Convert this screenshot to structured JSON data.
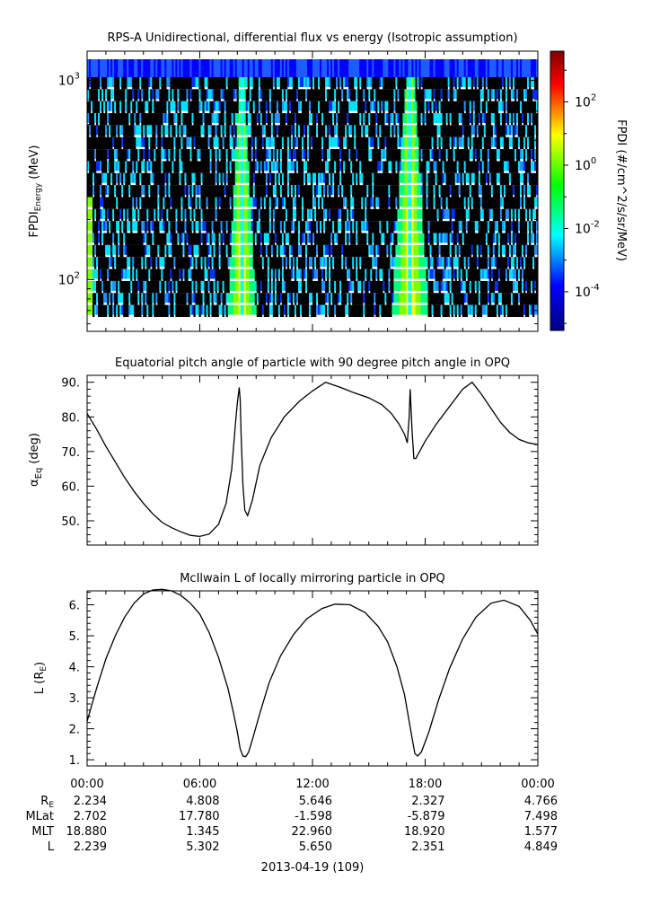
{
  "chart_data": [
    {
      "type": "heatmap",
      "title": "RPS-A Unidirectional, differential flux vs energy (Isotropic assumption)",
      "ylabel_main": "FPDI",
      "ylabel_sub": "Energy",
      "ylabel_unit": "(MeV)",
      "yscale": "log",
      "ylim": [
        55,
        1400
      ],
      "yticks": [
        {
          "value": 100,
          "base": "10",
          "exp": "2"
        },
        {
          "value": 1000,
          "base": "10",
          "exp": "3"
        }
      ],
      "xlim": [
        0,
        24
      ],
      "green_bands_hours": [
        {
          "center": 8.25,
          "base_halfwidth": 0.75,
          "top_halfwidth": 0.15
        },
        {
          "center": 17.2,
          "base_halfwidth": 0.95,
          "top_halfwidth": 0.25
        }
      ],
      "colorbar": {
        "label": "FPDI (#/cm^2/s/sr/MeV)",
        "scale": "log",
        "range": [
          6e-06,
          4000
        ],
        "ticks": [
          {
            "value": 0.0001,
            "base": "10",
            "exp": "-4"
          },
          {
            "value": 0.01,
            "base": "10",
            "exp": "-2"
          },
          {
            "value": 1,
            "base": "10",
            "exp": "0"
          },
          {
            "value": 100,
            "base": "10",
            "exp": "2"
          }
        ],
        "colors": [
          "#000080",
          "#0000ff",
          "#00ffff",
          "#00ff00",
          "#ffff00",
          "#ff0000",
          "#800000"
        ]
      }
    },
    {
      "type": "line",
      "title": "Equatorial pitch angle of particle with 90 degree pitch angle in OPQ",
      "ylabel_main": "α",
      "ylabel_sub": "Eq",
      "ylabel_unit": "(deg)",
      "ylim": [
        43,
        92
      ],
      "yticks": [
        50,
        60,
        70,
        80,
        90
      ],
      "xlim": [
        0,
        24
      ],
      "x": [
        0,
        0.5,
        1,
        1.5,
        2,
        2.5,
        3,
        3.5,
        4,
        4.5,
        5,
        5.5,
        6,
        6.5,
        7,
        7.4,
        7.7,
        7.9,
        8.0,
        8.1,
        8.15,
        8.2,
        8.3,
        8.4,
        8.55,
        8.8,
        9.2,
        9.8,
        10.5,
        11.3,
        12,
        12.7,
        13.5,
        14.2,
        15,
        15.7,
        16.2,
        16.6,
        16.9,
        17.05,
        17.15,
        17.2,
        17.3,
        17.4,
        17.5,
        17.7,
        18,
        18.6,
        19.3,
        20,
        20.5,
        21,
        21.5,
        22,
        22.5,
        23,
        23.5,
        24
      ],
      "y": [
        81,
        76.5,
        71.5,
        67,
        62.5,
        58.5,
        55,
        52,
        49.5,
        48,
        46.8,
        45.8,
        45.5,
        46.2,
        49,
        55,
        65,
        78,
        84,
        88.5,
        85,
        75,
        60,
        53,
        51.5,
        56,
        66,
        74,
        80,
        84.5,
        87.5,
        90,
        88.5,
        87,
        85.5,
        83.5,
        81,
        78,
        75,
        72.5,
        80,
        88,
        76,
        68,
        68,
        70,
        73,
        78,
        83,
        88,
        90,
        86.5,
        82.5,
        78.5,
        75.5,
        73.5,
        72.5,
        72
      ]
    },
    {
      "type": "line",
      "title": "McIlwain L of locally mirroring particle in OPQ",
      "ylabel_main": "L (R",
      "ylabel_sub": "E",
      "ylabel_unit": ")",
      "ylim": [
        0.8,
        6.45
      ],
      "yticks": [
        1,
        2,
        3,
        4,
        5,
        6
      ],
      "xlim": [
        0,
        24
      ],
      "x": [
        0,
        0.5,
        1,
        1.5,
        2,
        2.5,
        3,
        3.5,
        4,
        4.5,
        5,
        5.5,
        6,
        6.5,
        7,
        7.5,
        7.8,
        8.0,
        8.15,
        8.3,
        8.45,
        8.6,
        8.8,
        9.2,
        9.7,
        10.3,
        11,
        11.7,
        12.5,
        13.2,
        14,
        14.8,
        15.5,
        16,
        16.5,
        16.9,
        17.1,
        17.3,
        17.45,
        17.6,
        17.8,
        18.2,
        18.7,
        19.3,
        20,
        20.7,
        21.5,
        22.2,
        23,
        23.6,
        24
      ],
      "y": [
        2.24,
        3.3,
        4.25,
        5.0,
        5.6,
        6.05,
        6.35,
        6.48,
        6.5,
        6.45,
        6.3,
        6.05,
        5.7,
        5.1,
        4.3,
        3.3,
        2.5,
        1.9,
        1.35,
        1.12,
        1.1,
        1.25,
        1.65,
        2.5,
        3.5,
        4.35,
        5.05,
        5.55,
        5.88,
        6.02,
        6.0,
        5.75,
        5.3,
        4.8,
        4.0,
        3.1,
        2.4,
        1.7,
        1.2,
        1.12,
        1.25,
        1.9,
        2.9,
        3.95,
        4.9,
        5.6,
        6.05,
        6.15,
        5.95,
        5.5,
        5.05
      ]
    }
  ],
  "xaxis": {
    "tick_labels": [
      "00:00",
      "06:00",
      "12:00",
      "18:00",
      "00:00"
    ],
    "date_label": "2013-04-19 (109)"
  },
  "ephemeris": {
    "rows": [
      {
        "name_main": "R",
        "name_sub": "E",
        "values": [
          "2.234",
          "4.808",
          "5.646",
          "2.327",
          "4.766"
        ]
      },
      {
        "name_main": "MLat",
        "name_sub": "",
        "values": [
          "2.702",
          "17.780",
          "-1.598",
          "-5.879",
          "7.498"
        ]
      },
      {
        "name_main": "MLT",
        "name_sub": "",
        "values": [
          "18.880",
          "1.345",
          "22.960",
          "18.920",
          "1.577"
        ]
      },
      {
        "name_main": "L",
        "name_sub": "",
        "values": [
          "2.239",
          "5.302",
          "5.650",
          "2.351",
          "4.849"
        ]
      }
    ]
  }
}
